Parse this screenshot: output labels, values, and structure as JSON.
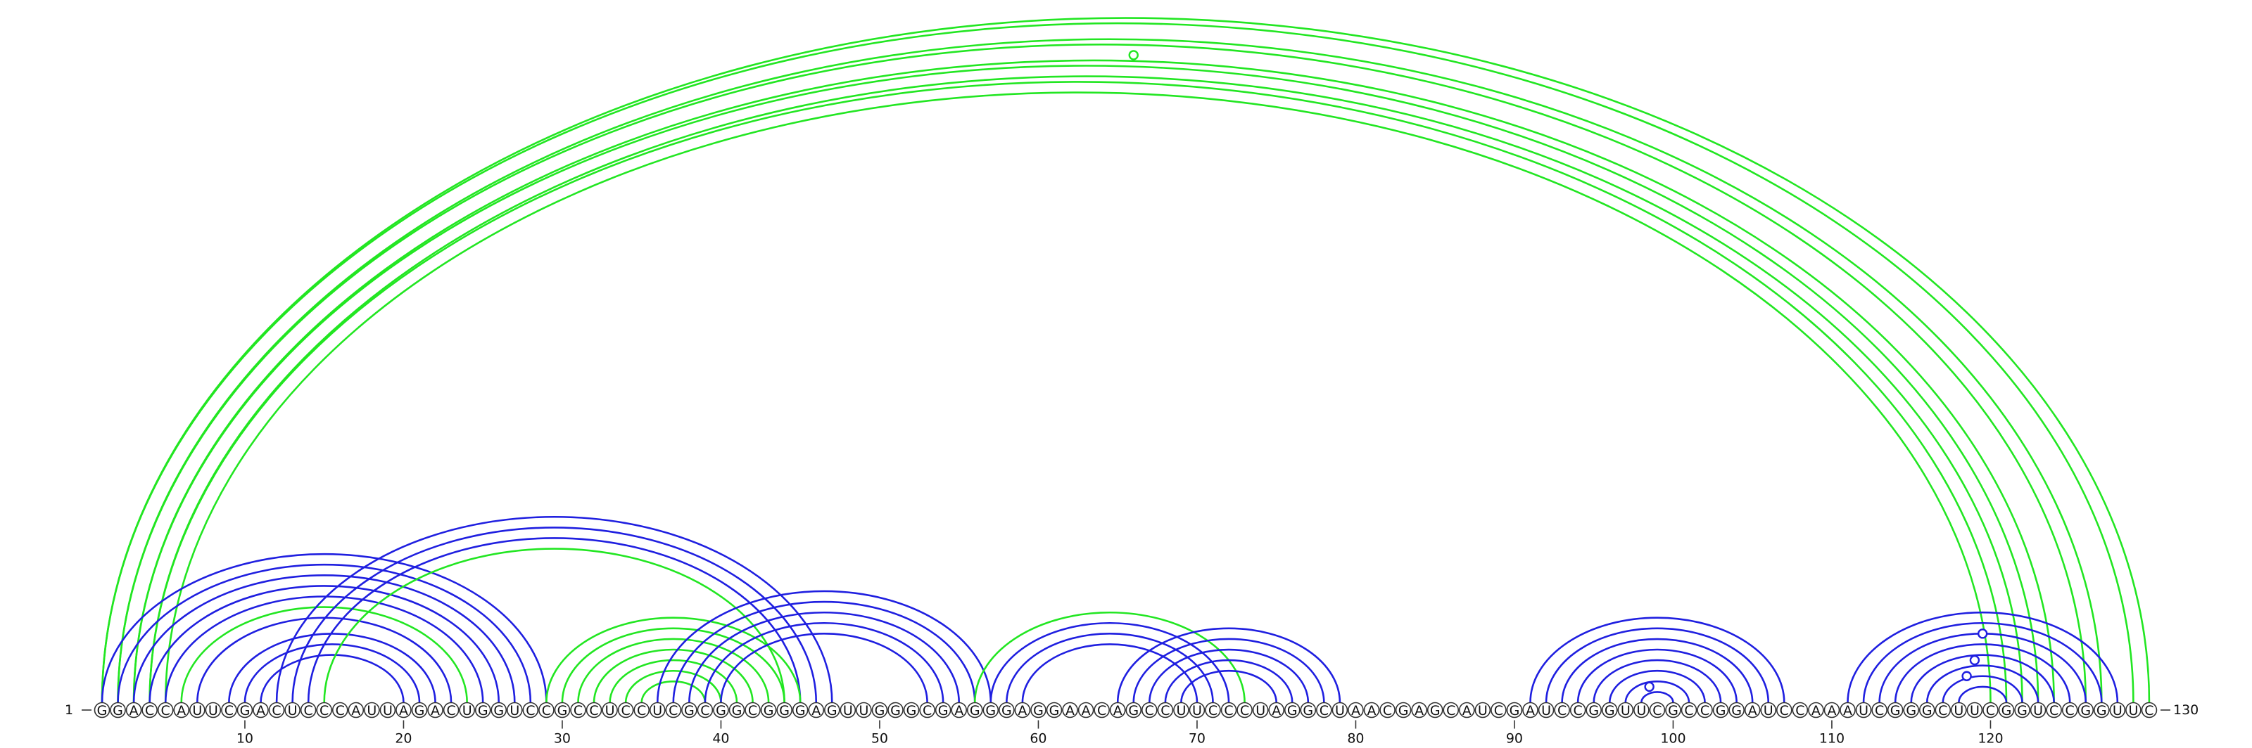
{
  "colors": {
    "blue": "#1f1fe0",
    "green": "#22e622",
    "nucleotide_stroke": "#333333"
  },
  "chart_data": {
    "type": "arc-diagram",
    "sequence": "GGACCAUUCGACUCCCAUUAGACUGGUCCGCCUCCUCGCGGCGGGAGUUGGGCGAGGGAGGAACAGCCUUCCCUAGGCUAACGAGCAUCGAUCCGGUUCGCCGGAUCCAAAUCGGGCUUCGGUCCGGUUC",
    "length": 130,
    "start_label": "1",
    "end_label": "130",
    "ticks": [
      "10",
      "20",
      "30",
      "40",
      "50",
      "60",
      "70",
      "80",
      "90",
      "100",
      "110",
      "120"
    ],
    "arcs": [
      {
        "i": 1,
        "j": 130,
        "color": "green"
      },
      {
        "i": 1,
        "j": 129,
        "color": "green"
      },
      {
        "i": 2,
        "j": 127,
        "color": "green"
      },
      {
        "i": 2,
        "j": 126,
        "color": "green"
      },
      {
        "i": 3,
        "j": 124,
        "color": "green"
      },
      {
        "i": 3,
        "j": 123,
        "color": "green"
      },
      {
        "i": 4,
        "j": 122,
        "color": "green"
      },
      {
        "i": 4,
        "j": 121,
        "color": "green"
      },
      {
        "i": 5,
        "j": 120,
        "color": "green"
      },
      {
        "i": 1,
        "j": 29,
        "color": "blue"
      },
      {
        "i": 2,
        "j": 28,
        "color": "blue"
      },
      {
        "i": 3,
        "j": 27,
        "color": "blue"
      },
      {
        "i": 4,
        "j": 26,
        "color": "blue"
      },
      {
        "i": 5,
        "j": 25,
        "color": "blue"
      },
      {
        "i": 7,
        "j": 23,
        "color": "blue"
      },
      {
        "i": 9,
        "j": 22,
        "color": "blue"
      },
      {
        "i": 10,
        "j": 21,
        "color": "blue"
      },
      {
        "i": 11,
        "j": 20,
        "color": "blue"
      },
      {
        "i": 6,
        "j": 24,
        "color": "green"
      },
      {
        "i": 12,
        "j": 47,
        "color": "blue"
      },
      {
        "i": 13,
        "j": 46,
        "color": "blue"
      },
      {
        "i": 14,
        "j": 45,
        "color": "blue"
      },
      {
        "i": 15,
        "j": 44,
        "color": "green"
      },
      {
        "i": 29,
        "j": 45,
        "color": "green"
      },
      {
        "i": 30,
        "j": 44,
        "color": "green"
      },
      {
        "i": 31,
        "j": 43,
        "color": "green"
      },
      {
        "i": 32,
        "j": 42,
        "color": "green"
      },
      {
        "i": 33,
        "j": 41,
        "color": "green"
      },
      {
        "i": 34,
        "j": 40,
        "color": "green"
      },
      {
        "i": 35,
        "j": 39,
        "color": "green"
      },
      {
        "i": 36,
        "j": 57,
        "color": "blue"
      },
      {
        "i": 37,
        "j": 56,
        "color": "blue"
      },
      {
        "i": 38,
        "j": 55,
        "color": "blue"
      },
      {
        "i": 39,
        "j": 54,
        "color": "blue"
      },
      {
        "i": 40,
        "j": 53,
        "color": "blue"
      },
      {
        "i": 56,
        "j": 73,
        "color": "green"
      },
      {
        "i": 57,
        "j": 72,
        "color": "blue"
      },
      {
        "i": 58,
        "j": 71,
        "color": "blue"
      },
      {
        "i": 59,
        "j": 70,
        "color": "blue"
      },
      {
        "i": 65,
        "j": 79,
        "color": "blue"
      },
      {
        "i": 66,
        "j": 78,
        "color": "blue"
      },
      {
        "i": 67,
        "j": 77,
        "color": "blue"
      },
      {
        "i": 68,
        "j": 76,
        "color": "blue"
      },
      {
        "i": 69,
        "j": 75,
        "color": "blue"
      },
      {
        "i": 91,
        "j": 107,
        "color": "blue"
      },
      {
        "i": 92,
        "j": 106,
        "color": "blue"
      },
      {
        "i": 93,
        "j": 105,
        "color": "blue"
      },
      {
        "i": 94,
        "j": 104,
        "color": "blue"
      },
      {
        "i": 95,
        "j": 103,
        "color": "blue"
      },
      {
        "i": 96,
        "j": 102,
        "color": "blue"
      },
      {
        "i": 97,
        "j": 101,
        "color": "blue"
      },
      {
        "i": 98,
        "j": 100,
        "color": "blue"
      },
      {
        "i": 111,
        "j": 128,
        "color": "blue"
      },
      {
        "i": 112,
        "j": 127,
        "color": "blue"
      },
      {
        "i": 113,
        "j": 126,
        "color": "blue"
      },
      {
        "i": 114,
        "j": 125,
        "color": "blue"
      },
      {
        "i": 115,
        "j": 124,
        "color": "blue"
      },
      {
        "i": 116,
        "j": 123,
        "color": "blue"
      },
      {
        "i": 117,
        "j": 122,
        "color": "blue"
      },
      {
        "i": 118,
        "j": 121,
        "color": "blue"
      }
    ],
    "markers": [
      {
        "i": 5,
        "j": 127,
        "color": "green"
      },
      {
        "i": 97,
        "j": 100,
        "color": "blue"
      },
      {
        "i": 113,
        "j": 126,
        "color": "blue"
      },
      {
        "i": 115,
        "j": 123,
        "color": "blue"
      },
      {
        "i": 116,
        "j": 121,
        "color": "blue"
      }
    ]
  }
}
